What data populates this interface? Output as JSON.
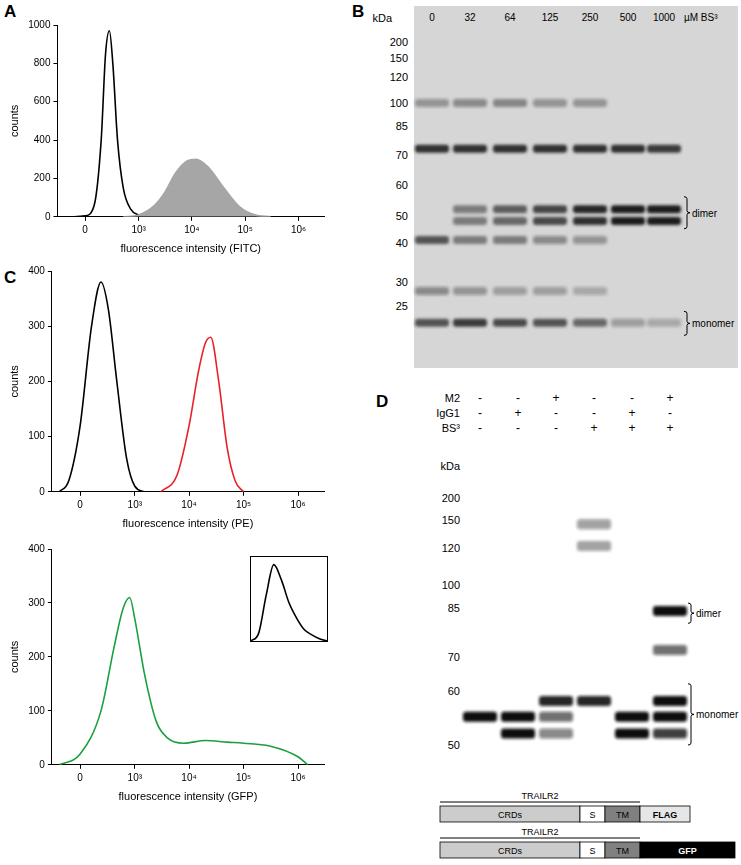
{
  "panel_labels": [
    "A",
    "B",
    "C",
    "D"
  ],
  "chart_data": [
    {
      "type": "line",
      "x_label": "fluorescence intensity (FITC)",
      "y_label": "counts",
      "xlim": [
        -300,
        3000000
      ],
      "xticks": [
        {
          "value": 0,
          "label": "0"
        },
        {
          "value": 1000,
          "label": "10³"
        },
        {
          "value": 10000,
          "label": "10⁴"
        },
        {
          "value": 100000,
          "label": "10⁵"
        },
        {
          "value": 1000000,
          "label": "10⁶"
        }
      ],
      "ylim": [
        0,
        1000
      ],
      "yticks": [
        0,
        200,
        400,
        600,
        800,
        1000
      ],
      "grid": false,
      "series": [
        {
          "color": "#a6a6a6",
          "type": "area",
          "x": [
            500,
            1000,
            2000,
            3000,
            5000,
            8000,
            12000,
            20000,
            40000,
            80000,
            150000,
            300000
          ],
          "values": [
            0,
            10,
            60,
            120,
            230,
            290,
            300,
            260,
            150,
            50,
            10,
            0
          ]
        },
        {
          "color": "#000000",
          "type": "line",
          "x": [
            -100,
            0,
            80,
            150,
            200,
            250,
            300,
            380,
            500,
            700,
            1000,
            1500
          ],
          "values": [
            0,
            5,
            60,
            400,
            850,
            970,
            800,
            400,
            150,
            40,
            10,
            0
          ]
        }
      ]
    },
    {
      "type": "line",
      "x_label": "fluorescence intensity (PE)",
      "y_label": "counts",
      "xlim": [
        -300,
        3000000
      ],
      "xticks": [
        {
          "value": 0,
          "label": "0"
        },
        {
          "value": 1000,
          "label": "10³"
        },
        {
          "value": 10000,
          "label": "10⁴"
        },
        {
          "value": 100000,
          "label": "10⁵"
        },
        {
          "value": 1000000,
          "label": "10⁶"
        }
      ],
      "ylim": [
        0,
        400
      ],
      "yticks": [
        0,
        100,
        200,
        300,
        400
      ],
      "grid": false,
      "series": [
        {
          "color": "#000000",
          "type": "line",
          "x": [
            -200,
            -100,
            0,
            100,
            200,
            300,
            450,
            700,
            1000,
            1500
          ],
          "values": [
            0,
            20,
            120,
            300,
            380,
            330,
            200,
            60,
            10,
            0
          ]
        },
        {
          "color": "#e8202a",
          "type": "line",
          "x": [
            3000,
            6000,
            10000,
            15000,
            20000,
            25000,
            35000,
            50000,
            70000,
            100000
          ],
          "values": [
            0,
            30,
            120,
            220,
            270,
            280,
            200,
            80,
            20,
            0
          ]
        }
      ]
    },
    {
      "type": "line",
      "x_label": "fluorescence intensity (GFP)",
      "y_label": "counts",
      "xlim": [
        -300,
        3000000
      ],
      "xticks": [
        {
          "value": 0,
          "label": "0"
        },
        {
          "value": 1000,
          "label": "10³"
        },
        {
          "value": 10000,
          "label": "10⁴"
        },
        {
          "value": 100000,
          "label": "10⁵"
        },
        {
          "value": 1000000,
          "label": "10⁶"
        }
      ],
      "ylim": [
        0,
        400
      ],
      "yticks": [
        0,
        100,
        200,
        300,
        400
      ],
      "grid": false,
      "series": [
        {
          "color": "#1aa040",
          "type": "line",
          "x": [
            -200,
            0,
            200,
            400,
            600,
            800,
            1000,
            1500,
            2500,
            4000,
            8000,
            20000,
            50000,
            100000,
            300000,
            1000000,
            1500000
          ],
          "values": [
            0,
            20,
            100,
            220,
            290,
            310,
            270,
            170,
            80,
            50,
            40,
            45,
            42,
            40,
            35,
            15,
            0
          ]
        }
      ]
    },
    {
      "type": "line",
      "tick_labels": false,
      "grid": false,
      "xlim": [
        0,
        10
      ],
      "ylim": [
        0,
        1.1
      ],
      "xticks": [],
      "yticks": [],
      "series": [
        {
          "color": "#000000",
          "type": "line",
          "x": [
            0,
            1,
            2,
            3,
            4,
            5,
            6,
            7,
            8,
            9,
            10
          ],
          "values": [
            0,
            0.1,
            0.6,
            1,
            0.8,
            0.5,
            0.3,
            0.15,
            0.08,
            0.03,
            0
          ]
        }
      ]
    }
  ],
  "blots": [
    {
      "kDa_label": "kDa",
      "markers": [
        200,
        150,
        120,
        100,
        85,
        70,
        60,
        50,
        40,
        30,
        25
      ],
      "lanes": [
        "0",
        "32",
        "64",
        "125",
        "250",
        "500",
        "1000"
      ],
      "lane_unit": "µM BS³",
      "bands": [
        {
          "kDa": 100,
          "intensity": [
            0.35,
            0.4,
            0.45,
            0.35,
            0.35,
            0,
            0
          ]
        },
        {
          "kDa": 73,
          "intensity": [
            0.9,
            0.9,
            0.9,
            0.9,
            0.9,
            0.9,
            0.85
          ]
        },
        {
          "kDa": 52,
          "intensity": [
            0,
            0.5,
            0.65,
            0.8,
            0.95,
            1,
            1
          ]
        },
        {
          "kDa": 48,
          "intensity": [
            0,
            0.5,
            0.6,
            0.75,
            0.9,
            1,
            1
          ]
        },
        {
          "kDa": 41,
          "intensity": [
            0.7,
            0.5,
            0.5,
            0.4,
            0.35,
            0,
            0
          ]
        },
        {
          "kDa": 28,
          "intensity": [
            0.4,
            0.35,
            0.3,
            0.3,
            0.25,
            0,
            0
          ]
        },
        {
          "kDa": 22,
          "intensity": [
            0.7,
            0.85,
            0.75,
            0.7,
            0.6,
            0.3,
            0.25
          ]
        }
      ],
      "brackets": [
        {
          "label": "dimer",
          "kDa": [
            56,
            45
          ]
        },
        {
          "label": "monomer",
          "kDa": [
            24,
            20
          ]
        }
      ]
    },
    {
      "kDa_label": "kDa",
      "markers": [
        200,
        150,
        120,
        100,
        85,
        70,
        60,
        50
      ],
      "conditions": [
        {
          "label": "M2",
          "signs": [
            "-",
            "-",
            "+",
            "-",
            "-",
            "+"
          ]
        },
        {
          "label": "IgG1",
          "signs": [
            "-",
            "+",
            "-",
            "-",
            "+",
            "-"
          ]
        },
        {
          "label": "BS³",
          "signs": [
            "-",
            "-",
            "-",
            "+",
            "+",
            "+"
          ]
        }
      ],
      "bands": [
        {
          "kDa": 145,
          "intensity": [
            0,
            0,
            0,
            0.4,
            0,
            0
          ]
        },
        {
          "kDa": 122,
          "intensity": [
            0,
            0,
            0,
            0.4,
            0,
            0
          ]
        },
        {
          "kDa": 84,
          "intensity": [
            0,
            0,
            0,
            0,
            0,
            1
          ]
        },
        {
          "kDa": 72,
          "intensity": [
            0,
            0,
            0,
            0,
            0,
            0.6
          ]
        },
        {
          "kDa": 58,
          "intensity": [
            0,
            0,
            0.9,
            0.9,
            0,
            1
          ]
        },
        {
          "kDa": 55,
          "intensity": [
            1,
            1,
            0.6,
            0,
            1,
            1
          ]
        },
        {
          "kDa": 52,
          "intensity": [
            0,
            1,
            0.5,
            0,
            1,
            0.8
          ]
        }
      ],
      "brackets": [
        {
          "label": "dimer",
          "kDa": [
            88,
            80
          ]
        },
        {
          "label": "monomer",
          "kDa": [
            62,
            50
          ]
        }
      ]
    }
  ],
  "constructs": [
    {
      "label": "TRAILR2",
      "domains": [
        "CRDs",
        "S",
        "TM",
        "FLAG"
      ]
    },
    {
      "label": "TRAILR2",
      "domains": [
        "CRDs",
        "S",
        "TM",
        "GFP"
      ]
    }
  ]
}
